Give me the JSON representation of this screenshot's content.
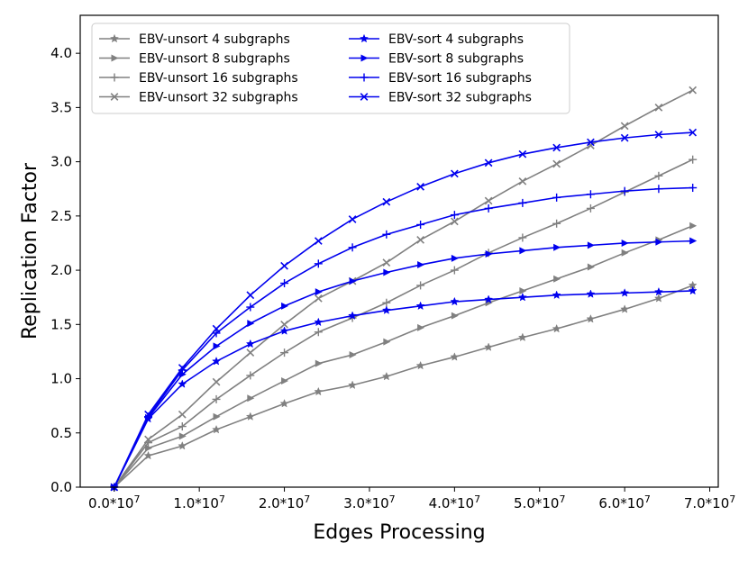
{
  "chart_data": {
    "type": "line",
    "title": "",
    "xlabel": "Edges Processing",
    "ylabel": "Replication Factor",
    "xlim": [
      -4000000,
      71000000
    ],
    "ylim": [
      0,
      4.35
    ],
    "grid": false,
    "legend_position": "top-left",
    "legend_columns": 2,
    "x_tick_values": [
      0,
      10000000,
      20000000,
      30000000,
      40000000,
      50000000,
      60000000,
      70000000
    ],
    "x_tick_labels": [
      "0.0*10^7",
      "1.0*10^7",
      "2.0*10^7",
      "3.0*10^7",
      "4.0*10^7",
      "5.0*10^7",
      "6.0*10^7",
      "7.0*10^7"
    ],
    "y_ticks": [
      "0.0",
      "0.5",
      "1.0",
      "1.5",
      "2.0",
      "2.5",
      "3.0",
      "3.5",
      "4.0"
    ],
    "x": [
      0,
      4000000,
      8000000,
      12000000,
      16000000,
      20000000,
      24000000,
      28000000,
      32000000,
      36000000,
      40000000,
      44000000,
      48000000,
      52000000,
      56000000,
      60000000,
      64000000,
      68000000
    ],
    "series": [
      {
        "name": "EBV-unsort 4 subgraphs",
        "color": "#808080",
        "marker": "star",
        "values": [
          0,
          0.29,
          0.38,
          0.53,
          0.65,
          0.77,
          0.88,
          0.94,
          1.02,
          1.12,
          1.2,
          1.29,
          1.38,
          1.46,
          1.55,
          1.64,
          1.74,
          1.86
        ]
      },
      {
        "name": "EBV-unsort 8 subgraphs",
        "color": "#808080",
        "marker": "triangle-right",
        "values": [
          0,
          0.36,
          0.47,
          0.65,
          0.82,
          0.98,
          1.14,
          1.22,
          1.34,
          1.47,
          1.58,
          1.7,
          1.81,
          1.92,
          2.03,
          2.16,
          2.28,
          2.41
        ]
      },
      {
        "name": "EBV-unsort 16 subgraphs",
        "color": "#808080",
        "marker": "plus",
        "values": [
          0,
          0.41,
          0.56,
          0.81,
          1.03,
          1.24,
          1.43,
          1.56,
          1.7,
          1.86,
          2.0,
          2.16,
          2.3,
          2.43,
          2.57,
          2.72,
          2.87,
          3.02
        ]
      },
      {
        "name": "EBV-unsort 32 subgraphs",
        "color": "#808080",
        "marker": "x",
        "values": [
          0,
          0.44,
          0.67,
          0.97,
          1.24,
          1.5,
          1.74,
          1.9,
          2.07,
          2.28,
          2.45,
          2.64,
          2.82,
          2.98,
          3.15,
          3.33,
          3.5,
          3.66
        ]
      },
      {
        "name": "EBV-sort 4 subgraphs",
        "color": "#0000ee",
        "marker": "star",
        "values": [
          0,
          0.63,
          0.95,
          1.16,
          1.32,
          1.44,
          1.52,
          1.58,
          1.63,
          1.67,
          1.71,
          1.73,
          1.75,
          1.77,
          1.78,
          1.79,
          1.8,
          1.81
        ]
      },
      {
        "name": "EBV-sort 8 subgraphs",
        "color": "#0000ee",
        "marker": "triangle-right",
        "values": [
          0,
          0.64,
          1.04,
          1.3,
          1.51,
          1.67,
          1.8,
          1.9,
          1.98,
          2.05,
          2.11,
          2.15,
          2.18,
          2.21,
          2.23,
          2.25,
          2.26,
          2.27
        ]
      },
      {
        "name": "EBV-sort 16 subgraphs",
        "color": "#0000ee",
        "marker": "plus",
        "values": [
          0,
          0.65,
          1.08,
          1.42,
          1.66,
          1.88,
          2.06,
          2.21,
          2.33,
          2.42,
          2.51,
          2.57,
          2.62,
          2.67,
          2.7,
          2.73,
          2.75,
          2.76
        ]
      },
      {
        "name": "EBV-sort 32 subgraphs",
        "color": "#0000ee",
        "marker": "x",
        "values": [
          0,
          0.67,
          1.1,
          1.46,
          1.77,
          2.04,
          2.27,
          2.47,
          2.63,
          2.77,
          2.89,
          2.99,
          3.07,
          3.13,
          3.18,
          3.22,
          3.25,
          3.27
        ]
      }
    ]
  }
}
